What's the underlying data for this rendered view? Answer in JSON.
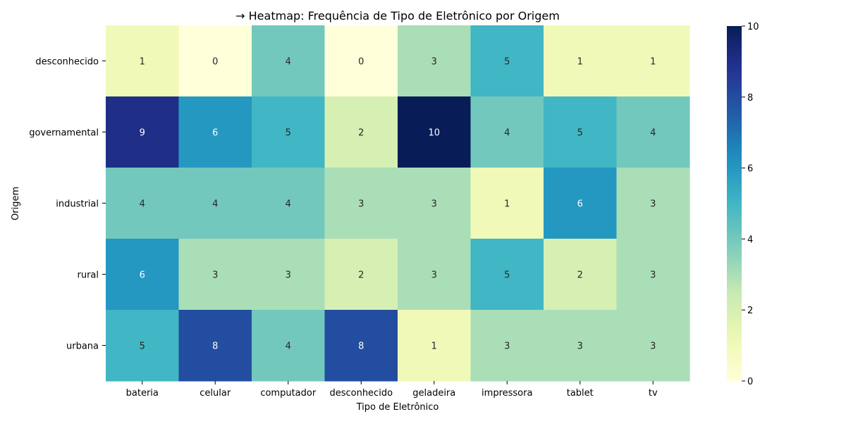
{
  "chart_data": {
    "type": "heatmap",
    "title": "→ Heatmap: Frequência de Tipo de Eletrônico por Origem",
    "xlabel": "Tipo de Eletrônico",
    "ylabel": "Origem",
    "x_categories": [
      "bateria",
      "celular",
      "computador",
      "desconhecido",
      "geladeira",
      "impressora",
      "tablet",
      "tv"
    ],
    "y_categories": [
      "desconhecido",
      "governamental",
      "industrial",
      "rural",
      "urbana"
    ],
    "values": [
      [
        1,
        0,
        4,
        0,
        3,
        5,
        1,
        1
      ],
      [
        9,
        6,
        5,
        2,
        10,
        4,
        5,
        4
      ],
      [
        4,
        4,
        4,
        3,
        3,
        1,
        6,
        3
      ],
      [
        6,
        3,
        3,
        2,
        3,
        5,
        2,
        3
      ],
      [
        5,
        8,
        4,
        8,
        1,
        3,
        3,
        3
      ]
    ],
    "colorscale": "YlGnBu",
    "color_range": [
      0,
      10
    ],
    "colorbar_ticks": [
      "0",
      "2",
      "4",
      "6",
      "8",
      "10"
    ],
    "annotated": true
  }
}
